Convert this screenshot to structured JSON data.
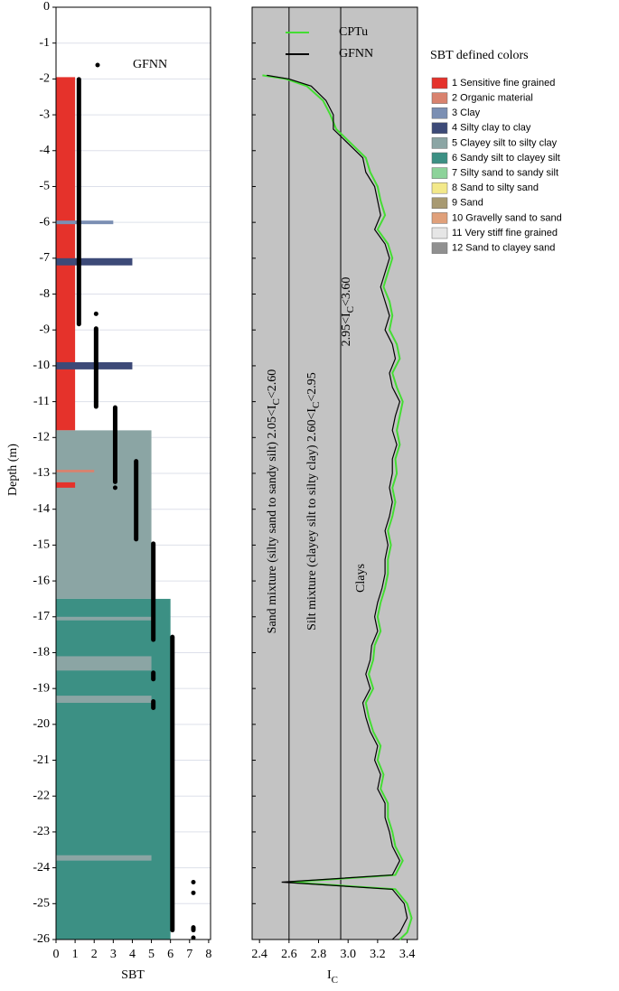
{
  "chart_data": [
    {
      "type": "bar",
      "label": "A",
      "xlabel": "SBT",
      "ylabel": "Depth (m)",
      "xlim": [
        0,
        8.1
      ],
      "xticks": [
        0,
        1,
        2,
        3,
        4,
        5,
        6,
        7,
        8
      ],
      "ylim": [
        -26,
        0
      ],
      "yticks": [
        0,
        -1,
        -2,
        -3,
        -4,
        -5,
        -6,
        -7,
        -8,
        -9,
        -10,
        -11,
        -12,
        -13,
        -14,
        -15,
        -16,
        -17,
        -18,
        -19,
        -20,
        -21,
        -22,
        -23,
        -24,
        -25,
        -26
      ],
      "grid": true,
      "legend_title": "SBT defined colors",
      "classes": [
        {
          "name": "1 Sensitive fine grained",
          "color": "#e5322b"
        },
        {
          "name": "2 Organic material",
          "color": "#d9826e"
        },
        {
          "name": "3 Clay",
          "color": "#7b8fb3"
        },
        {
          "name": "4 Silty clay to clay",
          "color": "#3d4a78"
        },
        {
          "name": "5 Clayey silt to silty clay",
          "color": "#8ba5a4"
        },
        {
          "name": "6 Sandy silt to clayey silt",
          "color": "#3c9084"
        },
        {
          "name": "7 Silty sand to sandy silt",
          "color": "#8dd39a"
        },
        {
          "name": "8 Sand to silty sand",
          "color": "#f3e98a"
        },
        {
          "name": "9 Sand",
          "color": "#a89a72"
        },
        {
          "name": "10 Gravelly sand to sand",
          "color": "#e0a07a"
        },
        {
          "name": "11 Very stiff fine grained",
          "color": "#e6e6e6"
        },
        {
          "name": "12 Sand to clayey sand",
          "color": "#909090"
        }
      ],
      "layers": {
        "top": [
          -1.95,
          -5.95,
          -7.0,
          -9.9,
          -11.8,
          -12.9,
          -13.25,
          -16.5,
          -17.0,
          -18.1,
          -19.2,
          -23.65
        ],
        "bottom": [
          -11.8,
          -6.05,
          -7.2,
          -10.1,
          -16.5,
          -12.97,
          -13.4,
          -26,
          -17.1,
          -18.5,
          -19.4,
          -23.8
        ],
        "sbt": [
          1,
          3,
          4,
          4,
          5,
          2,
          1,
          6,
          5,
          5,
          5,
          5
        ]
      },
      "points": {
        "name": "GFNN",
        "color": "#000000",
        "sbt": [
          1.2,
          2.1,
          2.1,
          3.1,
          3.1,
          4.2,
          5.1,
          5.1,
          5.1,
          6.1,
          7.2,
          7.2,
          7.2,
          7.2
        ],
        "top": [
          -1.95,
          -8.55,
          -8.9,
          -11.1,
          -13.4,
          -12.6,
          -14.9,
          -18.5,
          -19.3,
          -17.5,
          -24.4,
          -24.7,
          -25.6,
          -25.95
        ],
        "bottom": [
          -8.9,
          -8.6,
          -11.2,
          -13.3,
          -13.4,
          -14.9,
          -17.7,
          -18.8,
          -19.6,
          -25.8,
          -24.4,
          -24.7,
          -25.8,
          -26
        ]
      }
    },
    {
      "type": "line",
      "label": "B",
      "xlabel": "I",
      "xlabel_sub": "C",
      "xlim": [
        2.35,
        3.47
      ],
      "xticks": [
        2.4,
        2.6,
        2.8,
        {
          "value": 3,
          "label": "3.0"
        },
        3.2,
        3.4
      ],
      "ylim": [
        -26,
        0
      ],
      "yticks": [
        0,
        -1,
        -2,
        -3,
        -4,
        -5,
        -6,
        -7,
        -8,
        -9,
        -10,
        -11,
        -12,
        -13,
        -14,
        -15,
        -16,
        -17,
        -18,
        -19,
        -20,
        -21,
        -22,
        -23,
        -24,
        -25,
        -26
      ],
      "boundaries": [
        2.6,
        2.95
      ],
      "depth": [
        -1.9,
        -2.0,
        -2.2,
        -2.6,
        -3.0,
        -3.4,
        -3.8,
        -4.2,
        -4.6,
        -5.0,
        -5.4,
        -5.8,
        -6.2,
        -6.6,
        -7.0,
        -7.4,
        -7.8,
        -8.2,
        -8.6,
        -9.0,
        -9.4,
        -9.8,
        -10.2,
        -10.6,
        -11.0,
        -11.4,
        -11.8,
        -12.2,
        -12.6,
        -13.0,
        -13.4,
        -13.8,
        -14.2,
        -14.6,
        -15.0,
        -15.4,
        -15.8,
        -16.2,
        -16.6,
        -17.0,
        -17.4,
        -17.8,
        -18.2,
        -18.6,
        -19.0,
        -19.4,
        -19.8,
        -20.2,
        -20.6,
        -21.0,
        -21.4,
        -21.8,
        -22.2,
        -22.6,
        -23.0,
        -23.4,
        -23.8,
        -24.2,
        -24.4,
        -24.6,
        -25.0,
        -25.4,
        -25.8,
        -26.0
      ],
      "series": [
        {
          "name": "CPTu",
          "color": "#44dd33",
          "values": [
            2.42,
            2.58,
            2.72,
            2.83,
            2.88,
            2.92,
            3.02,
            3.12,
            3.15,
            3.2,
            3.22,
            3.25,
            3.2,
            3.27,
            3.3,
            3.27,
            3.24,
            3.28,
            3.3,
            3.28,
            3.33,
            3.35,
            3.3,
            3.33,
            3.37,
            3.35,
            3.33,
            3.35,
            3.32,
            3.33,
            3.3,
            3.32,
            3.3,
            3.27,
            3.29,
            3.27,
            3.27,
            3.25,
            3.22,
            3.2,
            3.22,
            3.18,
            3.17,
            3.14,
            3.17,
            3.12,
            3.14,
            3.17,
            3.22,
            3.2,
            3.24,
            3.22,
            3.27,
            3.27,
            3.3,
            3.32,
            3.37,
            3.32,
            2.6,
            3.32,
            3.4,
            3.43,
            3.4,
            3.35
          ]
        },
        {
          "name": "GFNN",
          "color": "#000000",
          "values": [
            2.45,
            2.6,
            2.75,
            2.85,
            2.9,
            2.9,
            3.0,
            3.1,
            3.12,
            3.18,
            3.2,
            3.22,
            3.18,
            3.25,
            3.28,
            3.25,
            3.22,
            3.25,
            3.28,
            3.25,
            3.3,
            3.32,
            3.28,
            3.3,
            3.35,
            3.32,
            3.3,
            3.33,
            3.3,
            3.3,
            3.28,
            3.3,
            3.28,
            3.25,
            3.27,
            3.25,
            3.25,
            3.23,
            3.2,
            3.18,
            3.2,
            3.16,
            3.15,
            3.12,
            3.15,
            3.1,
            3.12,
            3.15,
            3.2,
            3.18,
            3.22,
            3.2,
            3.25,
            3.25,
            3.28,
            3.3,
            3.35,
            3.3,
            2.55,
            3.3,
            3.38,
            3.4,
            3.35,
            3.3
          ]
        }
      ],
      "annotations": [
        {
          "text": "Sand mixture (silty sand to sandy silt) 2.05<I",
          "sub": "C",
          "tail": "<2.60"
        },
        {
          "text": "Silt mixture (clayey silt to silty clay) 2.60<I",
          "sub": "C",
          "tail": "<2.95"
        },
        {
          "text": "2.95<I",
          "sub": "C",
          "tail": "<3.60"
        },
        {
          "text": "Clays"
        }
      ]
    }
  ]
}
